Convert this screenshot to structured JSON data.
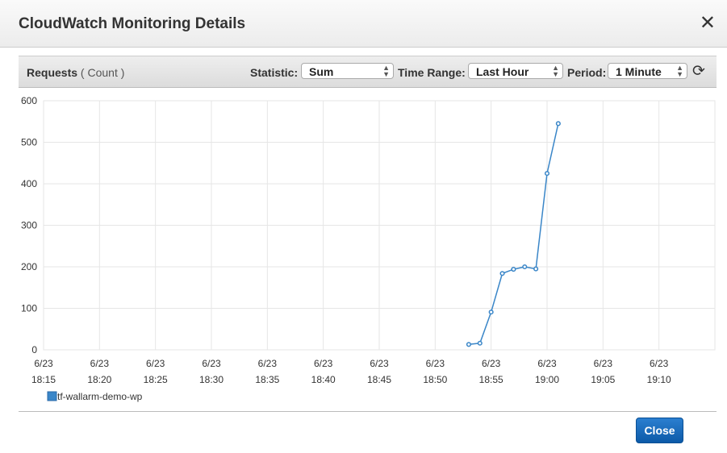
{
  "dialog": {
    "title": "CloudWatch Monitoring Details",
    "close_icon": "close-icon",
    "close_button": "Close"
  },
  "toolbar": {
    "metric": "Requests",
    "unit": "( Count )",
    "statistic_label": "Statistic:",
    "statistic_value": "Sum",
    "time_range_label": "Time Range:",
    "time_range_value": "Last Hour",
    "period_label": "Period:",
    "period_value": "1 Minute",
    "refresh_icon": "refresh-icon"
  },
  "chart_data": {
    "type": "line",
    "ylim": [
      0,
      600
    ],
    "yticks": [
      0,
      100,
      200,
      300,
      400,
      500,
      600
    ],
    "xlim": [
      "18:15",
      "19:15"
    ],
    "xticks": [
      {
        "date": "6/23",
        "time": "18:15"
      },
      {
        "date": "6/23",
        "time": "18:20"
      },
      {
        "date": "6/23",
        "time": "18:25"
      },
      {
        "date": "6/23",
        "time": "18:30"
      },
      {
        "date": "6/23",
        "time": "18:35"
      },
      {
        "date": "6/23",
        "time": "18:40"
      },
      {
        "date": "6/23",
        "time": "18:45"
      },
      {
        "date": "6/23",
        "time": "18:50"
      },
      {
        "date": "6/23",
        "time": "18:55"
      },
      {
        "date": "6/23",
        "time": "19:00"
      },
      {
        "date": "6/23",
        "time": "19:05"
      },
      {
        "date": "6/23",
        "time": "19:10"
      }
    ],
    "grid": true,
    "legend_position": "bottom-left",
    "series": [
      {
        "name": "tf-wallarm-demo-wp",
        "color": "#3a86c8",
        "x": [
          "18:53",
          "18:54",
          "18:55",
          "18:56",
          "18:57",
          "18:58",
          "18:59",
          "19:00",
          "19:01"
        ],
        "values": [
          13,
          16,
          91,
          184,
          194,
          200,
          195,
          425,
          545
        ]
      }
    ]
  }
}
